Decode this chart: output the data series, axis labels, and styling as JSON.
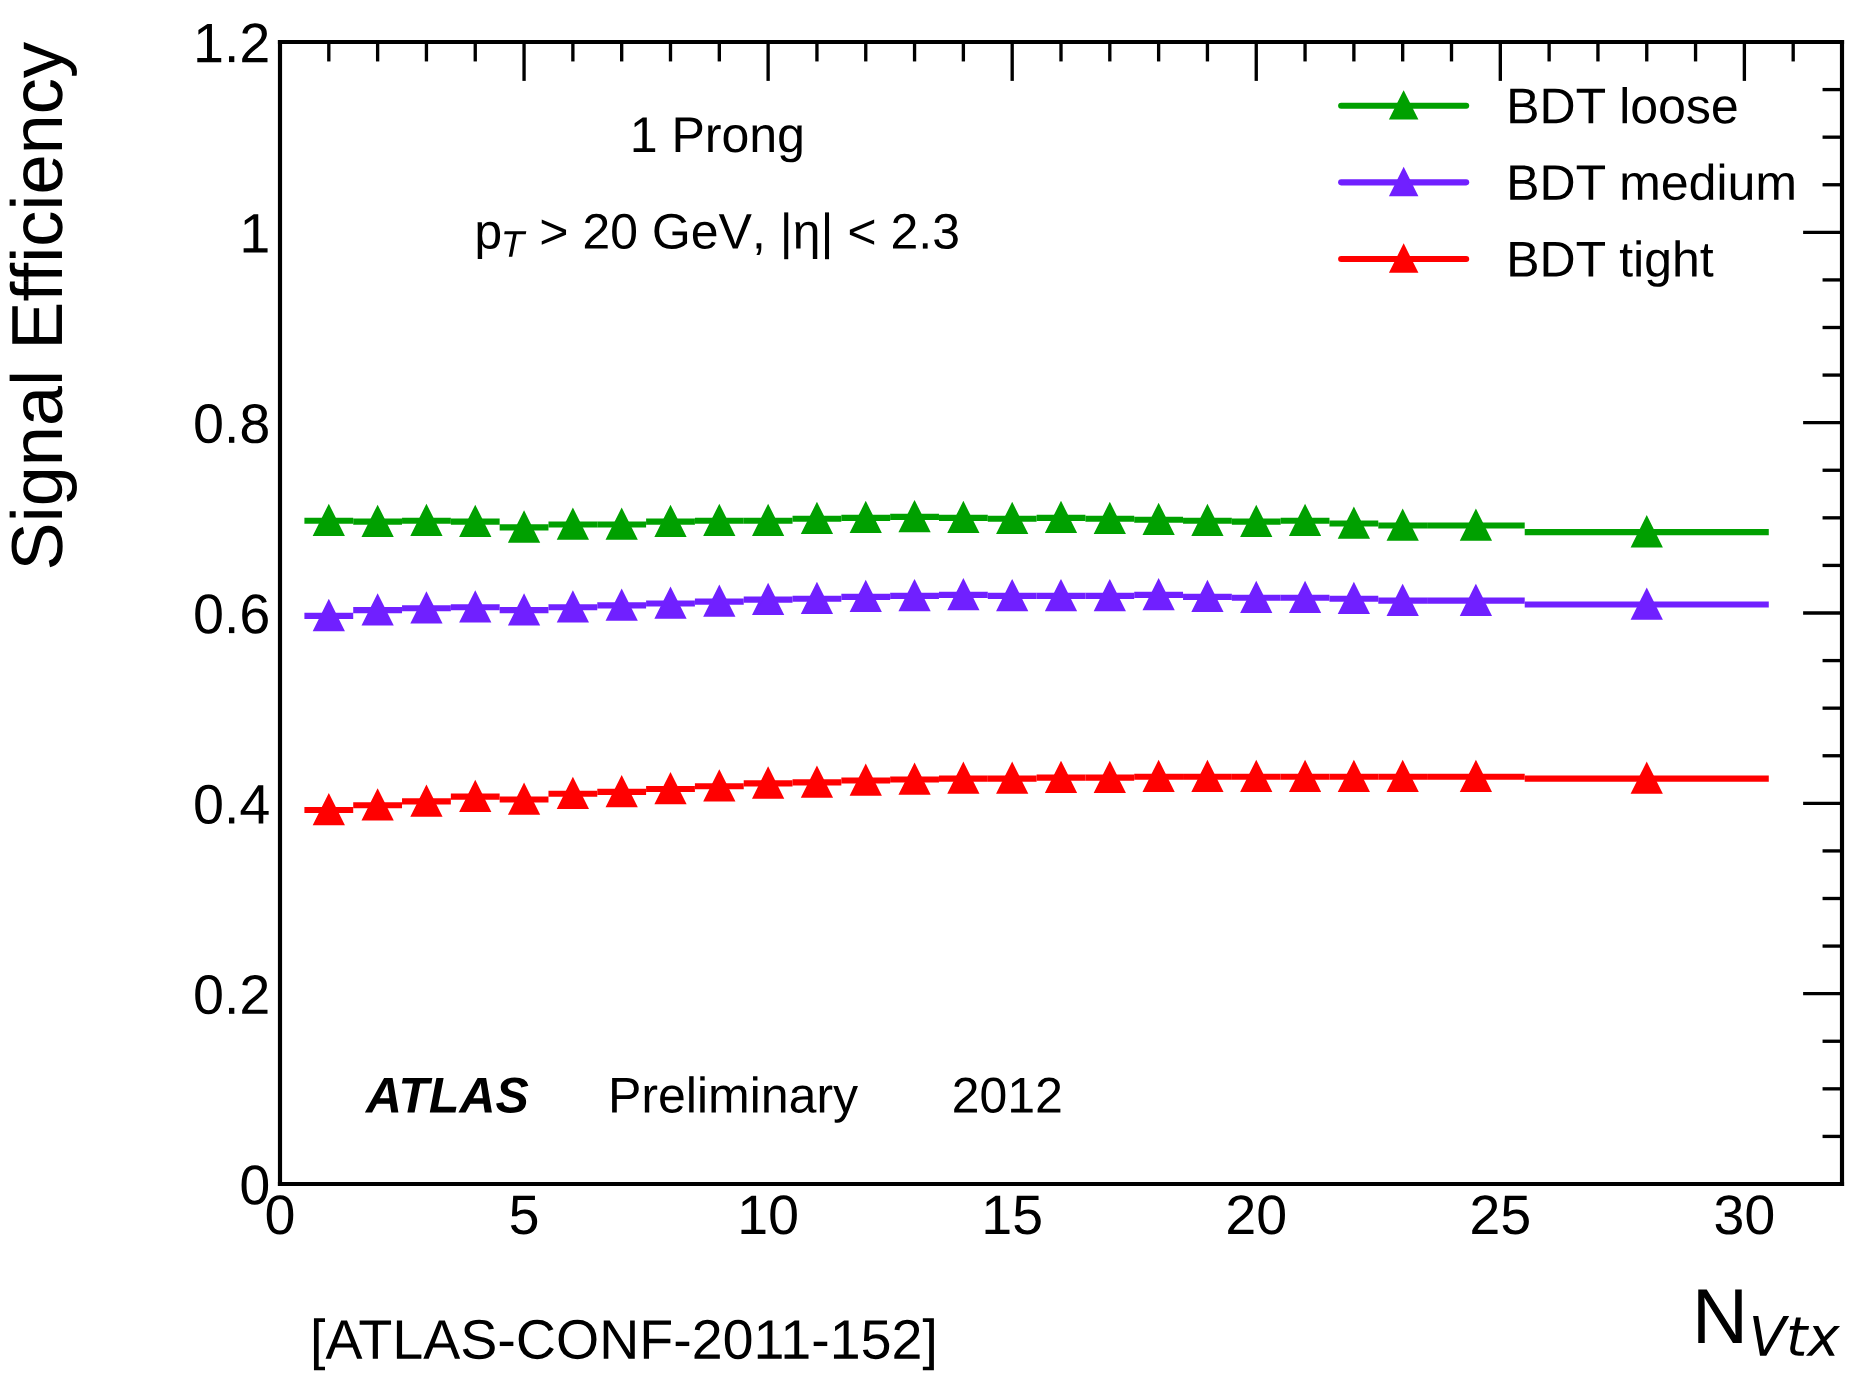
{
  "chart_data": {
    "type": "scatter",
    "ylabel": "Signal Efficiency",
    "xlabel": "N$_{Vtx}$",
    "annotations": [
      "1 Prong",
      "p$_{T}$ > 20 GeV, |η| < 2.3",
      "ATLAS",
      "Preliminary",
      "2012",
      "[ATLAS-CONF-2011-152]"
    ],
    "x": [
      1,
      2,
      3,
      4,
      5,
      6,
      7,
      8,
      9,
      10,
      11,
      12,
      13,
      14,
      15,
      16,
      17,
      18,
      19,
      20,
      21,
      22,
      23,
      24.5,
      28
    ],
    "series": [
      {
        "name": "BDT loose",
        "color": "#00a000",
        "values": [
          0.697,
          0.696,
          0.697,
          0.696,
          0.69,
          0.693,
          0.693,
          0.696,
          0.697,
          0.697,
          0.699,
          0.7,
          0.701,
          0.7,
          0.699,
          0.7,
          0.699,
          0.698,
          0.697,
          0.696,
          0.697,
          0.694,
          0.692,
          0.692,
          0.685
        ],
        "xerrors": [
          0.5,
          0.5,
          0.5,
          0.5,
          0.5,
          0.5,
          0.5,
          0.5,
          0.5,
          0.5,
          0.5,
          0.5,
          0.5,
          0.5,
          0.5,
          0.5,
          0.5,
          0.5,
          0.5,
          0.5,
          0.5,
          0.5,
          0.5,
          1,
          2.5
        ]
      },
      {
        "name": "BDT medium",
        "color": "#7020ff",
        "values": [
          0.597,
          0.603,
          0.605,
          0.606,
          0.603,
          0.606,
          0.608,
          0.61,
          0.612,
          0.614,
          0.615,
          0.617,
          0.618,
          0.619,
          0.618,
          0.618,
          0.618,
          0.619,
          0.617,
          0.616,
          0.616,
          0.615,
          0.613,
          0.613,
          0.609
        ],
        "xerrors": [
          0.5,
          0.5,
          0.5,
          0.5,
          0.5,
          0.5,
          0.5,
          0.5,
          0.5,
          0.5,
          0.5,
          0.5,
          0.5,
          0.5,
          0.5,
          0.5,
          0.5,
          0.5,
          0.5,
          0.5,
          0.5,
          0.5,
          0.5,
          1,
          2.5
        ]
      },
      {
        "name": "BDT tight",
        "color": "#ff0000",
        "values": [
          0.393,
          0.398,
          0.402,
          0.407,
          0.404,
          0.41,
          0.412,
          0.415,
          0.418,
          0.421,
          0.422,
          0.424,
          0.425,
          0.426,
          0.426,
          0.427,
          0.427,
          0.428,
          0.428,
          0.428,
          0.428,
          0.428,
          0.428,
          0.428,
          0.426
        ],
        "xerrors": [
          0.5,
          0.5,
          0.5,
          0.5,
          0.5,
          0.5,
          0.5,
          0.5,
          0.5,
          0.5,
          0.5,
          0.5,
          0.5,
          0.5,
          0.5,
          0.5,
          0.5,
          0.5,
          0.5,
          0.5,
          0.5,
          0.5,
          0.5,
          1,
          2.5
        ]
      }
    ],
    "xlim": [
      0,
      32
    ],
    "xticks": [
      0,
      5,
      10,
      15,
      20,
      25,
      30
    ],
    "ylim": [
      0,
      1.2
    ],
    "yticks": [
      0,
      0.2,
      0.4,
      0.6,
      0.8,
      1,
      1.2
    ],
    "marker": "triangle",
    "legend": "top right",
    "grid": false
  }
}
